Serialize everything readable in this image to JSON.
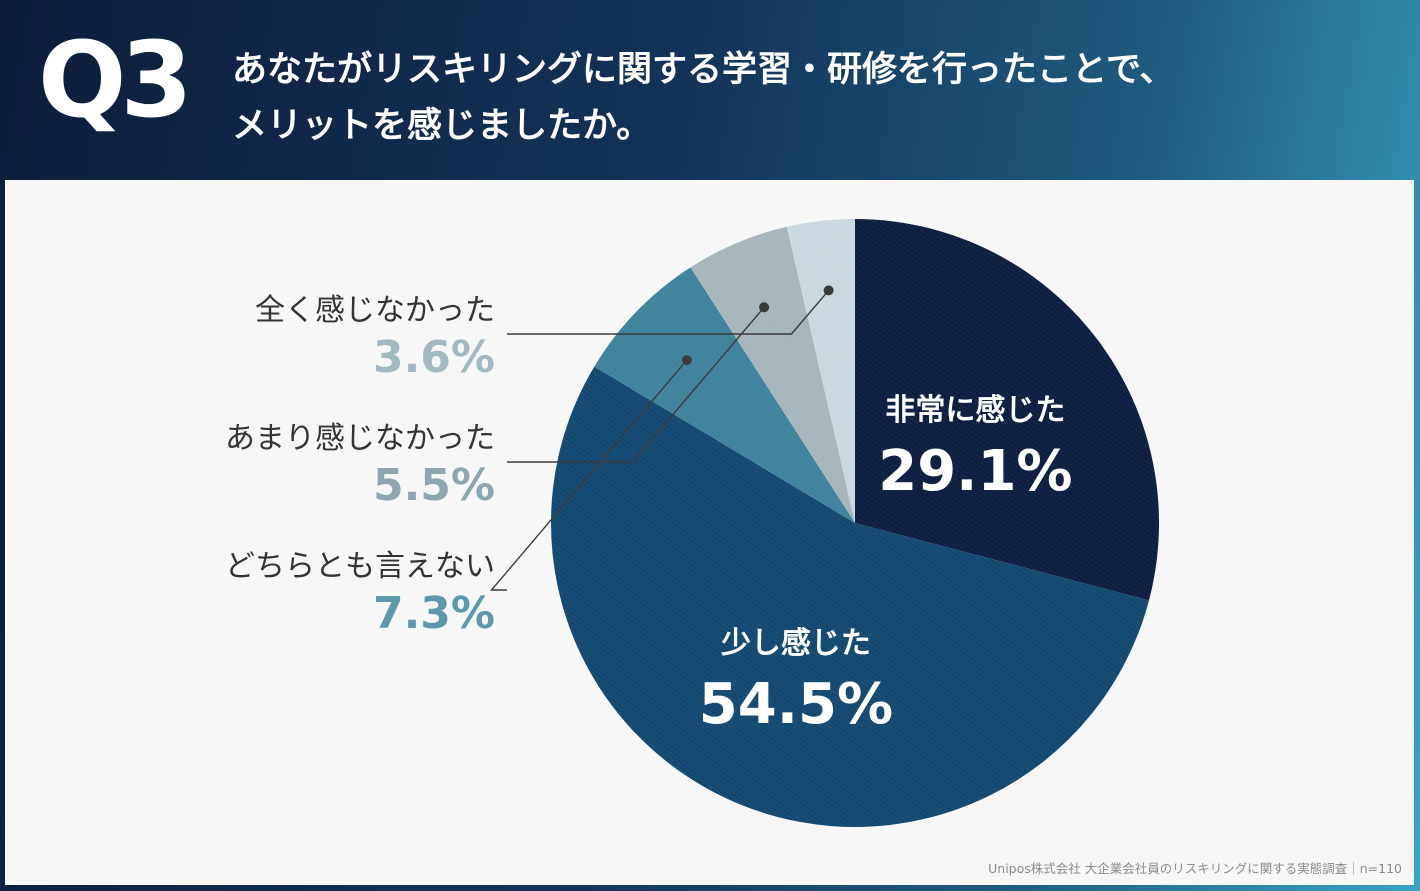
{
  "question_label": "Q3",
  "question_lines": [
    "あなたがリスキリングに関する学習・研修を行ったことで、",
    "メリットを感じましたか。"
  ],
  "source_note": "Unipos株式会社 大企業会社員のリスキリングに関する実態調査｜n=110",
  "chart_data": {
    "type": "pie",
    "title": "",
    "start": "12 o'clock, clockwise",
    "slices": [
      {
        "label": "非常に感じた",
        "value": 29.1,
        "value_label": "29.1%",
        "color": "#0f1f42",
        "label_placement": "inside"
      },
      {
        "label": "少し感じた",
        "value": 54.5,
        "value_label": "54.5%",
        "color": "#144a72",
        "label_placement": "inside"
      },
      {
        "label": "どちらとも言えない",
        "value": 7.3,
        "value_label": "7.3%",
        "color": "#3f849c",
        "label_placement": "left callout",
        "value_text_color": "#5d98ad"
      },
      {
        "label": "あまり感じなかった",
        "value": 5.5,
        "value_label": "5.5%",
        "color": "#a7b6bc",
        "label_placement": "left callout",
        "value_text_color": "#8ea6b0"
      },
      {
        "label": "全く感じなかった",
        "value": 3.6,
        "value_label": "3.6%",
        "color": "#c9d9df",
        "label_placement": "left callout",
        "value_text_color": "#a2b9c2"
      }
    ]
  }
}
